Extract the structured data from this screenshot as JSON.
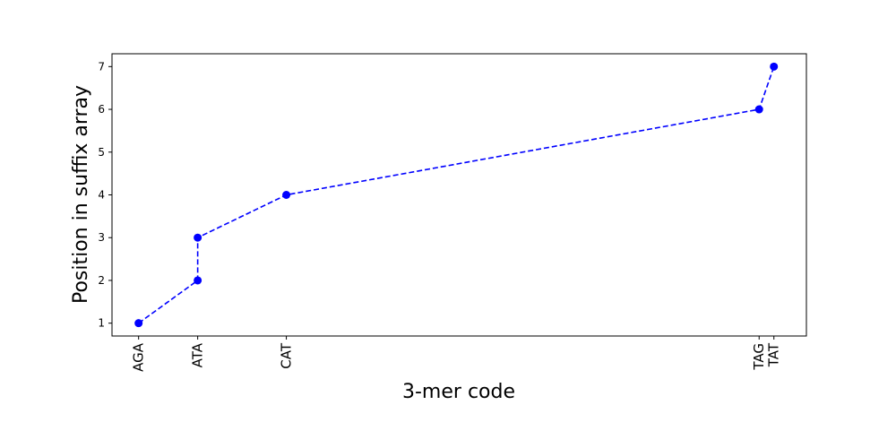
{
  "chart_data": {
    "type": "line",
    "title": "",
    "xlabel": "3-mer code",
    "ylabel": "Position in suffix array",
    "x": [
      8,
      12,
      12,
      18,
      50,
      51
    ],
    "y": [
      1,
      2,
      3,
      4,
      6,
      7
    ],
    "xlim": [
      6.2,
      53.2
    ],
    "ylim": [
      0.7,
      7.3
    ],
    "xticks": [
      {
        "value": 8,
        "label": "AGA"
      },
      {
        "value": 12,
        "label": "ATA"
      },
      {
        "value": 18,
        "label": "CAT"
      },
      {
        "value": 50,
        "label": "TAG"
      },
      {
        "value": 51,
        "label": "TAT"
      }
    ],
    "yticks": [
      1,
      2,
      3,
      4,
      5,
      6,
      7
    ],
    "series_color": "#0000ff",
    "line_style": "dashed",
    "marker": "circle",
    "grid": false,
    "legend": "none"
  }
}
